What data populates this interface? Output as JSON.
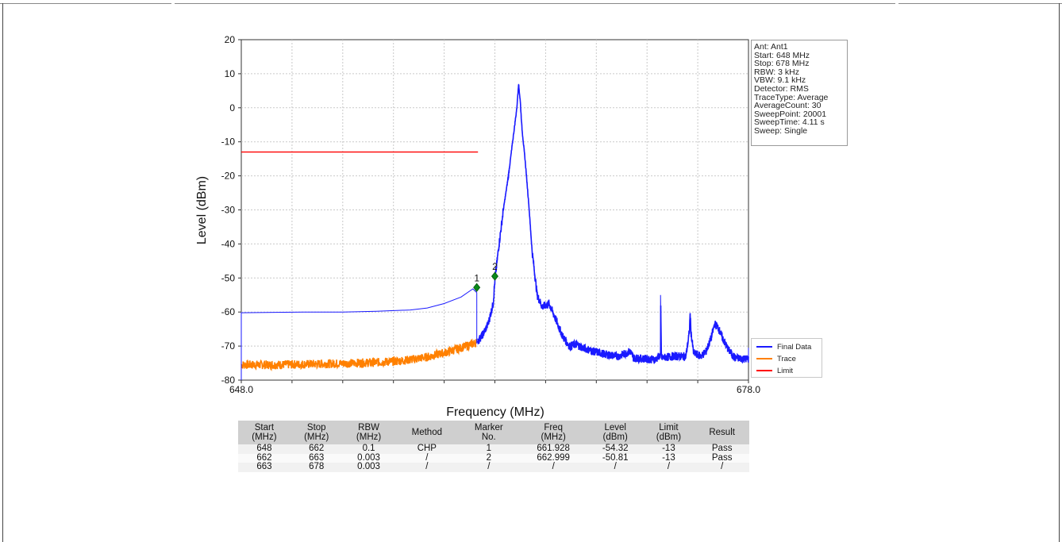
{
  "chart_data": {
    "type": "line",
    "xlabel": "Frequency (MHz)",
    "ylabel": "Level (dBm)",
    "xlim": [
      648.0,
      678.0
    ],
    "ylim": [
      -80,
      20
    ],
    "x_tick_labels": [
      "648.0",
      "678.0"
    ],
    "y_ticks": [
      20,
      10,
      0,
      -10,
      -20,
      -30,
      -40,
      -50,
      -60,
      -70,
      -80
    ],
    "grid": true,
    "legend_placement": "right-bottom",
    "series": [
      {
        "name": "Final Data",
        "color": "#1a1aff",
        "points": [
          [
            648.0,
            -80
          ],
          [
            648.0,
            -60.2
          ],
          [
            650,
            -60.1
          ],
          [
            652,
            -60.0
          ],
          [
            654,
            -60.0
          ],
          [
            656,
            -59.8
          ],
          [
            658,
            -59.4
          ],
          [
            659,
            -58.8
          ],
          [
            660,
            -57.5
          ],
          [
            661,
            -55.6
          ],
          [
            661.7,
            -53.2
          ],
          [
            661.928,
            -54.32
          ],
          [
            661.928,
            -69.0
          ],
          [
            662,
            -68.5
          ],
          [
            662.3,
            -66.5
          ],
          [
            662.6,
            -63.5
          ],
          [
            662.9,
            -57.5
          ],
          [
            662.999,
            -50.81
          ],
          [
            663.2,
            -42
          ],
          [
            663.5,
            -30
          ],
          [
            663.8,
            -20
          ],
          [
            664.1,
            -8
          ],
          [
            664.3,
            0
          ],
          [
            664.4,
            7
          ],
          [
            664.5,
            2
          ],
          [
            664.6,
            -6
          ],
          [
            664.8,
            -16
          ],
          [
            665.0,
            -28
          ],
          [
            665.2,
            -42
          ],
          [
            665.5,
            -55
          ],
          [
            665.8,
            -58.5
          ],
          [
            666.2,
            -57.5
          ],
          [
            666.5,
            -61
          ],
          [
            667,
            -67
          ],
          [
            667.4,
            -70
          ],
          [
            667.8,
            -69.5
          ],
          [
            668.2,
            -70.5
          ],
          [
            668.8,
            -71.5
          ],
          [
            669.6,
            -72.5
          ],
          [
            670.3,
            -73
          ],
          [
            670.8,
            -72
          ],
          [
            671,
            -71.5
          ],
          [
            671.2,
            -73.5
          ],
          [
            672,
            -73.8
          ],
          [
            672.5,
            -74
          ],
          [
            672.8,
            -72.5
          ],
          [
            672.8,
            -55
          ],
          [
            672.85,
            -73.5
          ],
          [
            673.5,
            -73
          ],
          [
            674.3,
            -73
          ],
          [
            674.5,
            -66
          ],
          [
            674.55,
            -60.5
          ],
          [
            674.6,
            -66
          ],
          [
            674.75,
            -72
          ],
          [
            675.2,
            -73
          ],
          [
            675.5,
            -71.5
          ],
          [
            675.8,
            -67.5
          ],
          [
            676,
            -63.5
          ],
          [
            676.2,
            -64.5
          ],
          [
            676.5,
            -68
          ],
          [
            676.8,
            -71
          ],
          [
            677.2,
            -73.5
          ],
          [
            678,
            -73.8
          ],
          [
            678,
            -70.5
          ]
        ]
      },
      {
        "name": "Trace",
        "color": "#ff8000",
        "points": [
          [
            648,
            -75.5
          ],
          [
            650,
            -75.5
          ],
          [
            652,
            -75.3
          ],
          [
            654,
            -75.1
          ],
          [
            656,
            -74.8
          ],
          [
            657,
            -74.5
          ],
          [
            658,
            -74.0
          ],
          [
            659,
            -73.2
          ],
          [
            660,
            -72.0
          ],
          [
            661,
            -70.5
          ],
          [
            661.9,
            -69.0
          ]
        ]
      },
      {
        "name": "Limit",
        "color": "#ff0000",
        "points": [
          [
            648,
            -13
          ],
          [
            662,
            -13
          ]
        ]
      }
    ],
    "markers": [
      {
        "label": "1",
        "x": 661.928,
        "y": -52.8
      },
      {
        "label": "2",
        "x": 662.999,
        "y": -49.5
      }
    ]
  },
  "info_lines": [
    "Ant: Ant1",
    "Start: 648 MHz",
    "Stop: 678 MHz",
    "RBW: 3 kHz",
    "VBW: 9.1 kHz",
    "Detector: RMS",
    "TraceType: Average",
    "AverageCount: 30",
    "SweepPoint: 20001",
    "SweepTime: 4.11 s",
    "Sweep: Single"
  ],
  "table": {
    "headers": [
      [
        "Start",
        "(MHz)"
      ],
      [
        "Stop",
        "(MHz)"
      ],
      [
        "RBW",
        "(MHz)"
      ],
      [
        "Method"
      ],
      [
        "Marker",
        "No."
      ],
      [
        "Freq",
        "(MHz)"
      ],
      [
        "Level",
        "(dBm)"
      ],
      [
        "Limit",
        "(dBm)"
      ],
      [
        "Result"
      ]
    ],
    "rows": [
      [
        "648",
        "662",
        "0.1",
        "CHP",
        "1",
        "661.928",
        "-54.32",
        "-13",
        "Pass"
      ],
      [
        "662",
        "663",
        "0.003",
        "/",
        "2",
        "662.999",
        "-50.81",
        "-13",
        "Pass"
      ],
      [
        "663",
        "678",
        "0.003",
        "/",
        "/",
        "/",
        "/",
        "/",
        "/"
      ]
    ]
  }
}
